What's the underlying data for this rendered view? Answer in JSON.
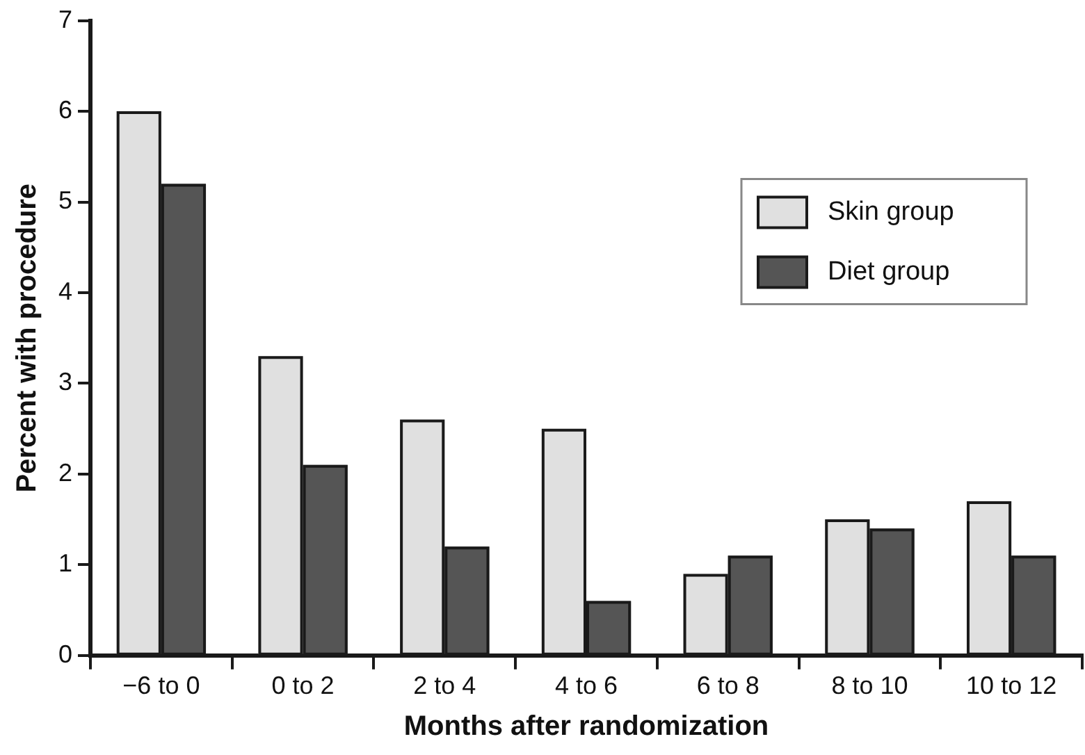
{
  "chart_data": {
    "type": "bar",
    "xlabel": "Months after randomization",
    "ylabel": "Percent with procedure",
    "categories": [
      "−6 to 0",
      "0 to 2",
      "2 to 4",
      "4 to 6",
      "6 to 8",
      "8 to 10",
      "10 to 12"
    ],
    "series": [
      {
        "name": "Skin group",
        "color": "#e0e0e0",
        "values": [
          6.0,
          3.3,
          2.6,
          2.5,
          0.9,
          1.5,
          1.7
        ]
      },
      {
        "name": "Diet group",
        "color": "#555555",
        "values": [
          5.2,
          2.1,
          1.2,
          0.6,
          1.1,
          1.4,
          1.1
        ]
      }
    ],
    "ylim": [
      0,
      7
    ],
    "yticks": [
      0,
      1,
      2,
      3,
      4,
      5,
      6,
      7
    ],
    "grid": false,
    "legend": "top right"
  }
}
